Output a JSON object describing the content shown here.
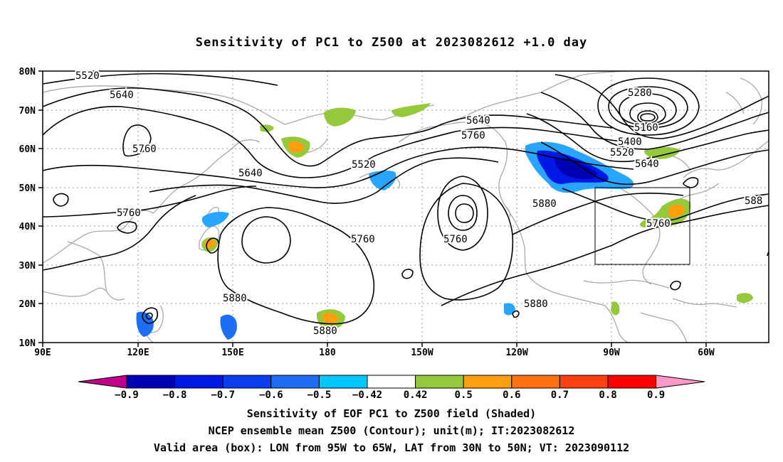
{
  "title": "Sensitivity of PC1 to Z500 at 2023082612 +1.0 day",
  "lat_labels": [
    "80N",
    "70N",
    "60N",
    "50N",
    "40N",
    "30N",
    "20N",
    "10N"
  ],
  "lon_labels": [
    "90E",
    "120E",
    "150E",
    "180",
    "150W",
    "120W",
    "90W",
    "60W"
  ],
  "contours": [
    {
      "text": "5520",
      "where": "top-left"
    },
    {
      "text": "5640",
      "where": "north pacific"
    },
    {
      "text": "5760",
      "where": "siberia low"
    },
    {
      "text": "5640",
      "where": "japan"
    },
    {
      "text": "5760",
      "where": "china"
    },
    {
      "text": "5520",
      "where": "alaska trough"
    },
    {
      "text": "5760",
      "where": "aleutian"
    },
    {
      "text": "5880",
      "where": "pacific high"
    },
    {
      "text": "5880",
      "where": "central pacific"
    },
    {
      "text": "5760",
      "where": "east pacific low"
    },
    {
      "text": "5640",
      "where": "canada"
    },
    {
      "text": "5760",
      "where": "canada"
    },
    {
      "text": "5880",
      "where": "us ridge"
    },
    {
      "text": "5880",
      "where": "mexico"
    },
    {
      "text": "5280",
      "where": "greenland low"
    },
    {
      "text": "5160",
      "where": "greenland low"
    },
    {
      "text": "5400",
      "where": "labrador"
    },
    {
      "text": "5520",
      "where": "labrador"
    },
    {
      "text": "5640",
      "where": "labrador"
    },
    {
      "text": "5760",
      "where": "northeast us"
    },
    {
      "text": "588",
      "where": "atlantic edge"
    }
  ],
  "colorbar": {
    "labels": [
      "−0.9",
      "−0.8",
      "−0.7",
      "−0.6",
      "−0.5",
      "−0.42",
      "0.42",
      "0.5",
      "0.6",
      "0.7",
      "0.8",
      "0.9"
    ],
    "colors": [
      "#c0008a",
      "#0000b4",
      "#0018e6",
      "#0a3cf0",
      "#1e6ef5",
      "#28a6ff",
      "#00c8ff",
      "#ffffff",
      "#96c83c",
      "#ff9f10",
      "#ff7010",
      "#ff4010",
      "#ff0000",
      "#ff9ac8"
    ]
  },
  "valid_box": {
    "lon_from": "95W",
    "lon_to": "65W",
    "lat_from": "30N",
    "lat_to": "50N"
  },
  "footer": {
    "line1": "Sensitivity of EOF PC1 to Z500 field (Shaded)",
    "line2": "NCEP ensemble mean Z500 (Contour); unit(m); IT:2023082612",
    "line3": "Valid area (box): LON from 95W to 65W, LAT from 30N to 50N; VT: 2023090112"
  }
}
